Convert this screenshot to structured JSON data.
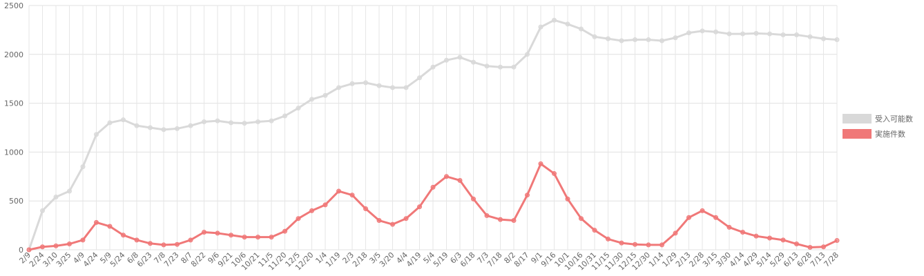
{
  "chart_data": {
    "type": "line",
    "categories": [
      "2/9",
      "2/24",
      "3/10",
      "3/25",
      "4/9",
      "4/24",
      "5/9",
      "5/24",
      "6/8",
      "6/23",
      "7/8",
      "7/23",
      "8/7",
      "8/22",
      "9/6",
      "9/21",
      "10/6",
      "10/21",
      "11/5",
      "11/20",
      "12/5",
      "12/20",
      "1/4",
      "1/19",
      "2/3",
      "2/18",
      "3/5",
      "3/20",
      "4/4",
      "4/19",
      "5/4",
      "5/19",
      "6/3",
      "6/18",
      "7/3",
      "7/18",
      "8/2",
      "8/17",
      "9/1",
      "9/16",
      "10/1",
      "10/16",
      "10/31",
      "11/15",
      "11/30",
      "12/15",
      "12/30",
      "1/14",
      "1/29",
      "2/13",
      "2/28",
      "3/15",
      "3/30",
      "4/14",
      "4/29",
      "5/14",
      "5/29",
      "6/13",
      "6/28",
      "7/13",
      "7/28"
    ],
    "series": [
      {
        "name": "受入可能数",
        "color": "#d9d9d9",
        "values": [
          0,
          400,
          540,
          600,
          850,
          1180,
          1300,
          1330,
          1270,
          1250,
          1230,
          1240,
          1270,
          1310,
          1320,
          1300,
          1295,
          1310,
          1320,
          1370,
          1450,
          1540,
          1580,
          1660,
          1700,
          1710,
          1680,
          1660,
          1660,
          1760,
          1870,
          1940,
          1970,
          1920,
          1880,
          1870,
          1870,
          2000,
          2280,
          2350,
          2310,
          2260,
          2180,
          2160,
          2140,
          2150,
          2150,
          2140,
          2170,
          2220,
          2240,
          2230,
          2210,
          2210,
          2215,
          2210,
          2200,
          2200,
          2180,
          2160,
          2150
        ]
      },
      {
        "name": "実施件数",
        "color": "#f07878",
        "values": [
          0,
          30,
          40,
          60,
          100,
          280,
          240,
          150,
          100,
          65,
          50,
          55,
          100,
          180,
          170,
          150,
          130,
          130,
          130,
          190,
          320,
          400,
          460,
          600,
          560,
          420,
          300,
          260,
          320,
          440,
          640,
          750,
          710,
          520,
          350,
          310,
          300,
          560,
          880,
          780,
          520,
          320,
          200,
          110,
          70,
          55,
          50,
          50,
          170,
          330,
          400,
          330,
          230,
          180,
          140,
          120,
          100,
          60,
          25,
          30,
          95
        ]
      }
    ],
    "ylim": [
      0,
      2500
    ],
    "yticks": [
      0,
      500,
      1000,
      1500,
      2000,
      2500
    ],
    "grid": true,
    "legend": "right"
  }
}
